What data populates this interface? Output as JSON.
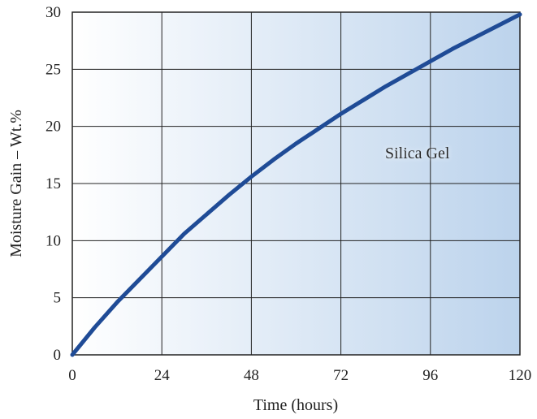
{
  "chart_data": {
    "type": "line",
    "title": "",
    "xlabel": "Time (hours)",
    "ylabel": "Moisture Gain – Wt.%",
    "xlim": [
      0,
      120
    ],
    "ylim": [
      0,
      30
    ],
    "x_ticks": [
      0,
      24,
      48,
      72,
      96,
      120
    ],
    "y_ticks": [
      0,
      5,
      10,
      15,
      20,
      25,
      30
    ],
    "x_tick_labels": [
      "0",
      "24",
      "48",
      "72",
      "96",
      "120"
    ],
    "y_tick_labels": [
      "0",
      "5",
      "10",
      "15",
      "20",
      "25",
      "30"
    ],
    "grid": true,
    "legend": "none",
    "background_gradient": [
      "#ffffff",
      "#bcd3ec"
    ],
    "series": [
      {
        "name": "Silica Gel",
        "color": "#1f4b96",
        "x": [
          0,
          6,
          12,
          18,
          24,
          30,
          36,
          42,
          48,
          54,
          60,
          66,
          72,
          78,
          84,
          90,
          96,
          102,
          108,
          114,
          120
        ],
        "y": [
          0,
          2.4,
          4.6,
          6.6,
          8.6,
          10.6,
          12.3,
          14.0,
          15.6,
          17.1,
          18.5,
          19.8,
          21.1,
          22.3,
          23.5,
          24.6,
          25.7,
          26.8,
          27.8,
          28.8,
          29.8
        ]
      }
    ]
  }
}
